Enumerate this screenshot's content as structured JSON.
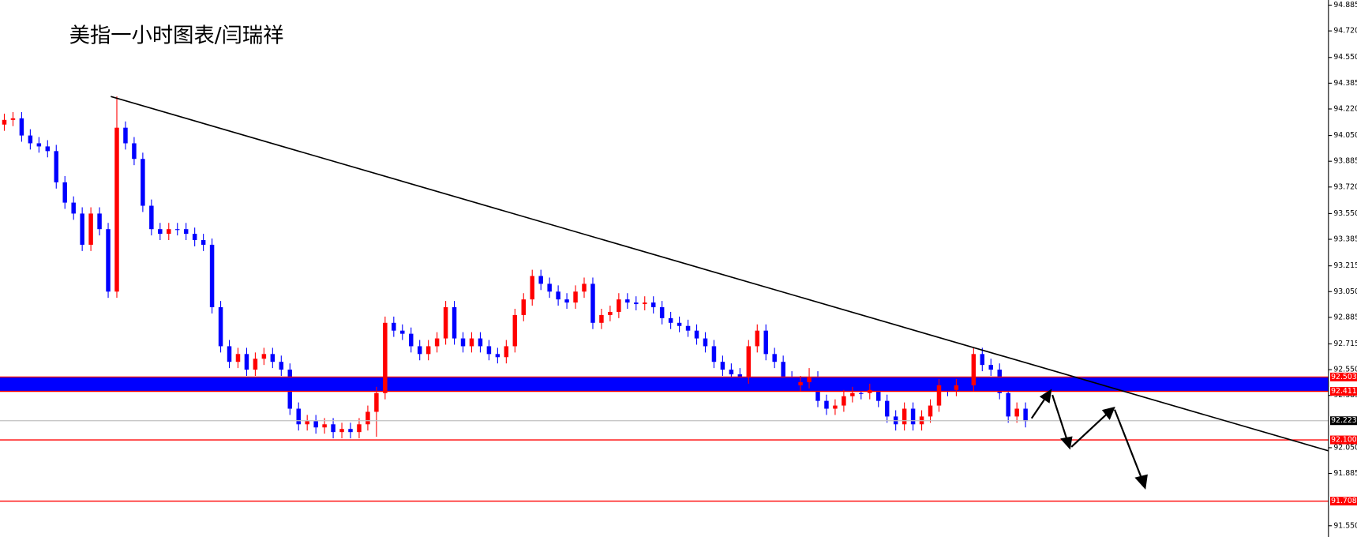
{
  "chart_data": {
    "type": "candlestick",
    "title": "美指一小时图表/闫瑞祥",
    "up_color": "#ff0000",
    "down_color": "#0000ff",
    "open": [
      94.12,
      94.15,
      94.16,
      94.05,
      94.0,
      93.98,
      93.95,
      93.75,
      93.62,
      93.55,
      93.35,
      93.55,
      93.45,
      93.05,
      94.1,
      94.0,
      93.9,
      93.6,
      93.45,
      93.42,
      93.45,
      93.45,
      93.42,
      93.38,
      93.35,
      92.95,
      92.7,
      92.6,
      92.65,
      92.55,
      92.62,
      92.65,
      92.6,
      92.55,
      92.3,
      92.2,
      92.22,
      92.18,
      92.2,
      92.15,
      92.17,
      92.15,
      92.2,
      92.28,
      92.4,
      92.85,
      92.8,
      92.78,
      92.7,
      92.65,
      92.7,
      92.75,
      92.95,
      92.75,
      92.7,
      92.75,
      92.7,
      92.65,
      92.63,
      92.7,
      92.9,
      93.0,
      93.15,
      93.1,
      93.05,
      93.0,
      92.98,
      93.05,
      93.1,
      92.85,
      92.9,
      92.92,
      93.0,
      92.98,
      92.97,
      92.98,
      92.95,
      92.88,
      92.85,
      92.83,
      92.8,
      92.75,
      92.7,
      92.6,
      92.55,
      92.52,
      92.5,
      92.7,
      92.8,
      92.65,
      92.6,
      92.5,
      92.45,
      92.47,
      92.5,
      92.35,
      92.3,
      92.32,
      92.38,
      92.4,
      92.4,
      92.42,
      92.35,
      92.25,
      92.2,
      92.3,
      92.2,
      92.25,
      92.32,
      92.45,
      92.42,
      92.45,
      92.45,
      92.65,
      92.58,
      92.55,
      92.4,
      92.25,
      92.3
    ],
    "high": [
      94.19,
      94.2,
      94.2,
      94.09,
      94.04,
      94.02,
      93.99,
      93.79,
      93.66,
      93.59,
      93.59,
      93.59,
      93.49,
      94.3,
      94.14,
      94.04,
      93.94,
      93.64,
      93.49,
      93.49,
      93.49,
      93.49,
      93.46,
      93.42,
      93.39,
      92.99,
      92.74,
      92.69,
      92.69,
      92.66,
      92.69,
      92.69,
      92.64,
      92.59,
      92.34,
      92.26,
      92.26,
      92.24,
      92.24,
      92.21,
      92.21,
      92.24,
      92.32,
      92.44,
      92.89,
      92.89,
      92.84,
      92.82,
      92.74,
      92.74,
      92.79,
      92.99,
      92.99,
      92.79,
      92.79,
      92.79,
      92.74,
      92.69,
      92.74,
      92.94,
      93.04,
      93.19,
      93.19,
      93.14,
      93.09,
      93.04,
      93.09,
      93.14,
      93.14,
      92.94,
      92.96,
      93.04,
      93.04,
      93.02,
      93.02,
      93.02,
      92.99,
      92.92,
      92.89,
      92.87,
      92.84,
      92.79,
      92.74,
      92.64,
      92.59,
      92.56,
      92.74,
      92.84,
      92.84,
      92.69,
      92.64,
      92.54,
      92.51,
      92.56,
      92.54,
      92.39,
      92.36,
      92.42,
      92.44,
      92.44,
      92.46,
      92.46,
      92.39,
      92.29,
      92.34,
      92.34,
      92.29,
      92.36,
      92.49,
      92.49,
      92.49,
      92.49,
      92.69,
      92.69,
      92.62,
      92.59,
      92.44,
      92.34,
      92.34
    ],
    "low": [
      94.08,
      94.11,
      94.01,
      93.96,
      93.94,
      93.91,
      93.71,
      93.58,
      93.51,
      93.31,
      93.31,
      93.41,
      93.01,
      93.01,
      93.96,
      93.86,
      93.56,
      93.41,
      93.38,
      93.38,
      93.41,
      93.38,
      93.34,
      93.31,
      92.91,
      92.66,
      92.56,
      92.56,
      92.51,
      92.51,
      92.58,
      92.56,
      92.51,
      92.26,
      92.16,
      92.16,
      92.14,
      92.14,
      92.11,
      92.11,
      92.11,
      92.11,
      92.16,
      92.12,
      92.36,
      92.76,
      92.74,
      92.66,
      92.61,
      92.61,
      92.66,
      92.71,
      92.71,
      92.66,
      92.66,
      92.66,
      92.61,
      92.59,
      92.59,
      92.66,
      92.86,
      92.96,
      93.06,
      93.01,
      92.96,
      92.94,
      92.94,
      93.01,
      92.81,
      92.81,
      92.86,
      92.88,
      92.94,
      92.93,
      92.93,
      92.91,
      92.84,
      92.81,
      92.79,
      92.76,
      92.71,
      92.66,
      92.56,
      92.51,
      92.48,
      92.46,
      92.46,
      92.66,
      92.61,
      92.56,
      92.46,
      92.41,
      92.41,
      92.43,
      92.31,
      92.26,
      92.26,
      92.28,
      92.34,
      92.36,
      92.36,
      92.31,
      92.21,
      92.16,
      92.16,
      92.16,
      92.16,
      92.21,
      92.28,
      92.38,
      92.38,
      92.41,
      92.41,
      92.54,
      92.51,
      92.36,
      92.21,
      92.21,
      92.18
    ],
    "close": [
      94.15,
      94.16,
      94.05,
      94.0,
      93.98,
      93.95,
      93.75,
      93.62,
      93.55,
      93.35,
      93.55,
      93.45,
      93.05,
      94.1,
      94.0,
      93.9,
      93.6,
      93.45,
      93.42,
      93.45,
      93.45,
      93.42,
      93.38,
      93.35,
      92.95,
      92.7,
      92.6,
      92.65,
      92.55,
      92.62,
      92.65,
      92.6,
      92.55,
      92.3,
      92.2,
      92.22,
      92.18,
      92.2,
      92.15,
      92.17,
      92.15,
      92.2,
      92.28,
      92.4,
      92.85,
      92.8,
      92.78,
      92.7,
      92.65,
      92.7,
      92.75,
      92.95,
      92.75,
      92.7,
      92.75,
      92.7,
      92.65,
      92.63,
      92.7,
      92.9,
      93.0,
      93.15,
      93.1,
      93.05,
      93.0,
      92.98,
      93.05,
      93.1,
      92.85,
      92.9,
      92.92,
      93.0,
      92.98,
      92.97,
      92.98,
      92.95,
      92.88,
      92.85,
      92.83,
      92.8,
      92.75,
      92.7,
      92.6,
      92.55,
      92.52,
      92.5,
      92.7,
      92.8,
      92.65,
      92.6,
      92.5,
      92.45,
      92.47,
      92.5,
      92.35,
      92.3,
      92.32,
      92.38,
      92.4,
      92.4,
      92.42,
      92.35,
      92.25,
      92.2,
      92.3,
      92.2,
      92.25,
      92.32,
      92.45,
      92.42,
      92.45,
      92.45,
      92.65,
      92.58,
      92.55,
      92.4,
      92.25,
      92.3,
      92.22
    ],
    "xlim": [
      -0.5,
      153
    ],
    "ylim": [
      91.478,
      94.918
    ],
    "yticks": [
      94.885,
      {
        "value": 94.72,
        "label": "94.720"
      },
      {
        "value": 94.55,
        "label": "94.550"
      },
      94.385,
      {
        "value": 94.22,
        "label": "94.220"
      },
      {
        "value": 94.05,
        "label": "94.050"
      },
      93.885,
      {
        "value": 93.72,
        "label": "93.720"
      },
      {
        "value": 93.55,
        "label": "93.550"
      },
      93.385,
      93.215,
      {
        "value": 93.05,
        "label": "93.050"
      },
      92.885,
      92.715,
      {
        "value": 92.55,
        "label": "92.550"
      },
      92.385,
      {
        "value": 92.05,
        "label": "92.050"
      },
      91.885,
      {
        "value": 91.55,
        "label": "91.550"
      }
    ],
    "levels": [
      92.503,
      92.411,
      92.223,
      {
        "value": 92.1,
        "label": "92.100"
      },
      91.708
    ],
    "level_colors": [
      "#ff0000",
      "#ff0000",
      "#c0c0c0",
      "#ff0000",
      "#ff0000"
    ],
    "level_label_colors": [
      "#ff0000",
      "#ff0000",
      "#000000",
      "#ff0000",
      "#ff0000"
    ],
    "band_color": "#0000ff",
    "trendline": {
      "x": [
        12.3,
        153
      ],
      "y": [
        94.3,
        92.03
      ],
      "color": "#000000"
    }
  }
}
